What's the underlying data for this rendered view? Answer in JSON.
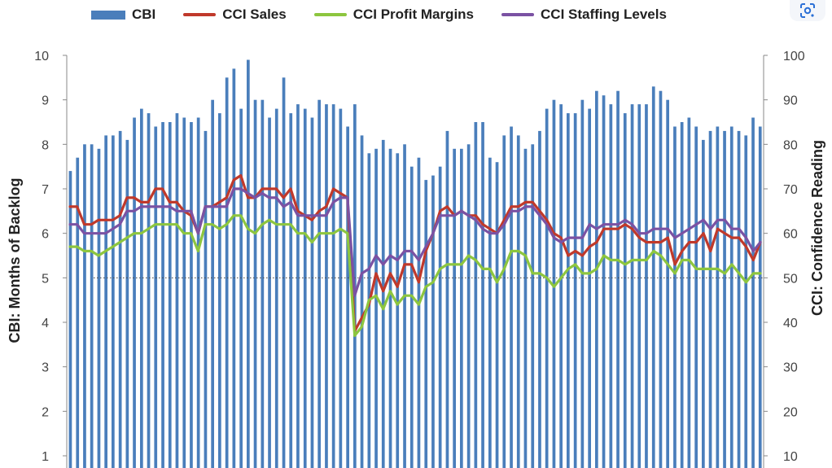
{
  "chart_data": {
    "type": "bar",
    "title": "",
    "legend_position": "top",
    "y_left": {
      "label": "CBI: Months of Backlog",
      "min": 1,
      "max": 10,
      "ticks": [
        "1",
        "2",
        "3",
        "4",
        "5",
        "6",
        "7",
        "8",
        "9",
        "10"
      ]
    },
    "y_right": {
      "label": "CCI: Confidence Reading",
      "min": 10,
      "max": 100,
      "ticks": [
        "10",
        "20",
        "30",
        "40",
        "50",
        "60",
        "70",
        "80",
        "90",
        "100"
      ]
    },
    "reference_line": {
      "axis": "right",
      "value": 50,
      "style": "dotted"
    },
    "series": [
      {
        "name": "CBI",
        "kind": "bar",
        "axis": "left",
        "color": "#4a7ebb",
        "values": [
          7.4,
          7.7,
          8.0,
          8.0,
          7.9,
          8.2,
          8.2,
          8.3,
          8.1,
          8.6,
          8.8,
          8.7,
          8.4,
          8.5,
          8.5,
          8.7,
          8.6,
          8.5,
          8.6,
          8.3,
          9.0,
          8.7,
          9.5,
          9.7,
          8.8,
          9.9,
          9.0,
          9.0,
          8.6,
          8.8,
          9.5,
          8.7,
          8.9,
          8.8,
          8.6,
          9.0,
          8.9,
          8.9,
          8.8,
          8.4,
          8.9,
          8.2,
          7.8,
          7.9,
          8.1,
          7.9,
          7.8,
          8.0,
          7.5,
          7.7,
          7.2,
          7.3,
          7.5,
          8.3,
          7.9,
          7.9,
          8.0,
          8.5,
          8.5,
          7.7,
          7.6,
          8.2,
          8.4,
          8.2,
          7.9,
          8.0,
          8.3,
          8.8,
          9.0,
          8.9,
          8.7,
          8.7,
          9.0,
          8.8,
          9.2,
          9.1,
          8.9,
          9.2,
          8.7,
          8.9,
          8.9,
          8.9,
          9.3,
          9.2,
          9.0,
          8.4,
          8.5,
          8.6,
          8.4,
          8.1,
          8.3,
          8.4,
          8.3,
          8.4,
          8.3,
          8.2,
          8.6,
          8.4
        ]
      },
      {
        "name": "CCI Sales",
        "kind": "line",
        "axis": "right",
        "color": "#c0392b",
        "values": [
          66,
          66,
          62,
          62,
          63,
          63,
          63,
          64,
          68,
          68,
          67,
          67,
          70,
          70,
          67,
          67,
          65,
          64,
          60,
          66,
          66,
          67,
          68,
          72,
          73,
          68,
          68,
          70,
          70,
          70,
          68,
          70,
          65,
          64,
          63,
          65,
          66,
          70,
          69,
          68,
          38,
          41,
          44,
          51,
          47,
          51,
          48,
          53,
          53,
          49,
          56,
          60,
          65,
          66,
          64,
          65,
          64,
          64,
          62,
          61,
          60,
          63,
          66,
          66,
          67,
          67,
          65,
          63,
          60,
          59,
          55,
          56,
          55,
          57,
          58,
          61,
          61,
          61,
          62,
          61,
          59,
          58,
          58,
          58,
          59,
          53,
          56,
          58,
          58,
          60,
          56,
          61,
          60,
          59,
          59,
          57,
          54,
          58
        ]
      },
      {
        "name": "CCI Profit Margins",
        "kind": "line",
        "axis": "right",
        "color": "#8dc63f",
        "values": [
          57,
          57,
          56,
          56,
          55,
          56,
          57,
          58,
          59,
          60,
          60,
          61,
          62,
          62,
          62,
          62,
          60,
          60,
          56,
          62,
          62,
          61,
          62,
          64,
          64,
          61,
          60,
          62,
          63,
          62,
          62,
          62,
          60,
          60,
          58,
          60,
          60,
          60,
          61,
          60,
          37,
          39,
          45,
          46,
          43,
          47,
          44,
          46,
          46,
          44,
          48,
          49,
          52,
          53,
          53,
          53,
          55,
          54,
          52,
          52,
          49,
          52,
          56,
          56,
          55,
          51,
          51,
          50,
          48,
          50,
          52,
          53,
          51,
          51,
          52,
          55,
          54,
          54,
          53,
          54,
          54,
          54,
          56,
          55,
          53,
          51,
          54,
          54,
          52,
          52,
          52,
          52,
          51,
          53,
          51,
          49,
          51,
          51
        ]
      },
      {
        "name": "CCI Staffing Levels",
        "kind": "line",
        "axis": "right",
        "color": "#7b52a3",
        "values": [
          62,
          62,
          60,
          60,
          60,
          60,
          61,
          62,
          65,
          65,
          66,
          66,
          66,
          66,
          66,
          65,
          65,
          65,
          60,
          66,
          66,
          66,
          66,
          70,
          70,
          69,
          68,
          69,
          68,
          68,
          66,
          67,
          64,
          64,
          64,
          64,
          64,
          67,
          68,
          68,
          46,
          51,
          52,
          55,
          53,
          55,
          54,
          56,
          56,
          54,
          57,
          60,
          64,
          64,
          64,
          65,
          64,
          63,
          61,
          60,
          60,
          62,
          65,
          65,
          66,
          66,
          64,
          62,
          59,
          58,
          59,
          59,
          59,
          62,
          61,
          62,
          62,
          62,
          63,
          62,
          60,
          60,
          61,
          61,
          61,
          59,
          60,
          61,
          62,
          63,
          61,
          63,
          63,
          61,
          61,
          59,
          56,
          58
        ]
      }
    ]
  },
  "toolbar": {
    "lens_icon": "google-lens-icon"
  }
}
